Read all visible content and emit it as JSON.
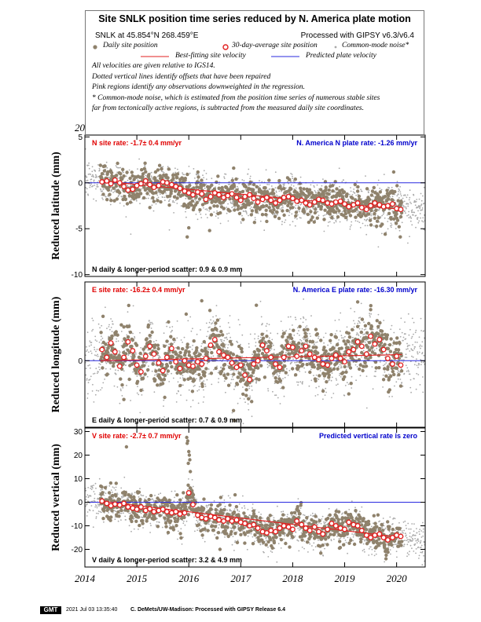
{
  "legend": {
    "title": "Site SNLK position time series reduced by N. America plate motion",
    "station_line": "SNLK at 45.854°N 268.459°E",
    "processed_line": "Processed with GIPSY v6.3/v6.4",
    "items": {
      "daily": "Daily site position",
      "avg30": "30-day-average site position",
      "cmn": "Common-mode noise*",
      "bestfit": "Best-fitting site velocity",
      "predicted": "Predicted plate velocity"
    },
    "notes": [
      "All velocities are given relative to IGS14.",
      "Dotted vertical lines identify offsets that have been repaired",
      "Pink regions identify any observations downweighted in the regression.",
      "* Common-mode noise, which is estimated from the position time series of numerous stable sites",
      "far from tectonically active regions, is subtracted from the measured daily site coordinates."
    ]
  },
  "footer": {
    "badge": "GMT",
    "timestamp": "2021 Jul 03 13:35:40",
    "credit": "C. DeMets/UW-Madison: Processed with GIPSY Release 6.4"
  },
  "colors": {
    "daily": "#8f826c",
    "cmn": "#a9a9a9",
    "avg_edge": "#e21f1f",
    "bestfit": "#e21f1f",
    "predicted": "#2a2adf",
    "rate_text_site": "#e00000",
    "rate_text_plate": "#0000cc"
  },
  "chart_data": [
    {
      "type": "scatter",
      "component": "north",
      "ylabel": "Reduced latitude (mm)",
      "xlim": [
        2014.0,
        2020.55
      ],
      "ylim": [
        -10.2,
        5.2
      ],
      "yticks": [
        5,
        0,
        -5,
        -10
      ],
      "xticks": [
        2014,
        2015,
        2016,
        2017,
        2018,
        2019,
        2020
      ],
      "site_rate_text": "N site rate:  -1.7± 0.4 mm/yr",
      "plate_rate_text": "N. America N plate rate:  -1.26 mm/yr",
      "scatter_text": "N daily & longer-period scatter:   0.9 &   0.9 mm",
      "data_span": [
        2014.3,
        2020.1
      ],
      "best_fit": {
        "x": [
          2014.3,
          2020.1
        ],
        "y": [
          0.2,
          -2.9
        ]
      },
      "predicted_rate_line_y": 0,
      "avg30": {
        "x": [
          2014.33,
          2014.42,
          2014.5,
          2014.58,
          2014.67,
          2014.75,
          2014.83,
          2014.92,
          2015.0,
          2015.08,
          2015.17,
          2015.25,
          2015.33,
          2015.42,
          2015.5,
          2015.58,
          2015.67,
          2015.75,
          2015.83,
          2015.92,
          2016.0,
          2016.08,
          2016.17,
          2016.25,
          2016.33,
          2016.42,
          2016.5,
          2016.58,
          2016.67,
          2016.75,
          2016.83,
          2016.92,
          2017.0,
          2017.08,
          2017.17,
          2017.25,
          2017.33,
          2017.42,
          2017.5,
          2017.58,
          2017.67,
          2017.75,
          2017.83,
          2017.92,
          2018.0,
          2018.08,
          2018.17,
          2018.25,
          2018.33,
          2018.42,
          2018.5,
          2018.58,
          2018.67,
          2018.75,
          2018.83,
          2018.92,
          2019.0,
          2019.08,
          2019.17,
          2019.25,
          2019.33,
          2019.42,
          2019.5,
          2019.58,
          2019.67,
          2019.75,
          2019.83,
          2019.92,
          2020.0,
          2020.08
        ],
        "y": [
          0.1,
          0.2,
          -0.1,
          0.3,
          0.0,
          -0.4,
          -0.8,
          -0.7,
          -0.3,
          -0.1,
          0.2,
          -0.2,
          -0.5,
          -0.3,
          0.1,
          0.0,
          -0.2,
          -0.4,
          -0.6,
          -0.9,
          -1.1,
          -1.3,
          -1.0,
          -1.2,
          -1.8,
          -1.5,
          -1.1,
          -1.3,
          -1.6,
          -1.4,
          -1.2,
          -1.6,
          -1.9,
          -1.5,
          -1.3,
          -1.7,
          -2.1,
          -1.8,
          -1.6,
          -1.9,
          -2.2,
          -1.9,
          -1.6,
          -1.5,
          -1.7,
          -2.0,
          -1.9,
          -2.2,
          -2.4,
          -2.1,
          -1.8,
          -1.9,
          -2.2,
          -2.3,
          -2.1,
          -2.0,
          -2.3,
          -2.6,
          -2.4,
          -2.2,
          -2.7,
          -2.9,
          -2.5,
          -2.2,
          -2.4,
          -2.6,
          -2.5,
          -2.3,
          -2.8,
          -2.9
        ]
      },
      "noise": {
        "daily_sd": 0.95,
        "cmn_sd": 1.2,
        "outliers": [
          [
            2015.97,
            -5.9
          ],
          [
            2016.0,
            -4.9
          ],
          [
            2019.78,
            -5.6
          ],
          [
            2020.07,
            -5.9
          ],
          [
            2017.5,
            -4.2
          ],
          [
            2016.4,
            -5.2
          ]
        ]
      }
    },
    {
      "type": "scatter",
      "component": "east",
      "ylabel": "Reduced longitude (mm)",
      "xlim": [
        2014.0,
        2020.55
      ],
      "ylim": [
        -6.0,
        7.1
      ],
      "yticks": [
        0
      ],
      "xticks": [
        2014,
        2015,
        2016,
        2017,
        2018,
        2019,
        2020
      ],
      "site_rate_text": "E site rate:  -16.2± 0.4 mm/yr",
      "plate_rate_text": "N. America E plate rate:  -16.30 mm/yr",
      "scatter_text": "E daily & longer-period scatter:   0.7 &   0.9 mm",
      "data_span": [
        2014.3,
        2020.1
      ],
      "best_fit": {
        "x": [
          2014.3,
          2020.1
        ],
        "y": [
          0.0,
          0.55
        ]
      },
      "predicted_rate_line_y": 0,
      "avg30": {
        "x": [
          2014.33,
          2014.42,
          2014.5,
          2014.58,
          2014.67,
          2014.75,
          2014.83,
          2014.92,
          2015.0,
          2015.08,
          2015.17,
          2015.25,
          2015.33,
          2015.42,
          2015.5,
          2015.58,
          2015.67,
          2015.75,
          2015.83,
          2015.92,
          2016.0,
          2016.08,
          2016.17,
          2016.25,
          2016.33,
          2016.42,
          2016.5,
          2016.58,
          2016.67,
          2016.75,
          2016.83,
          2016.92,
          2017.0,
          2017.08,
          2017.17,
          2017.25,
          2017.33,
          2017.42,
          2017.5,
          2017.58,
          2017.67,
          2017.75,
          2017.83,
          2017.92,
          2018.0,
          2018.08,
          2018.17,
          2018.25,
          2018.33,
          2018.42,
          2018.5,
          2018.58,
          2018.67,
          2018.75,
          2018.83,
          2018.92,
          2019.0,
          2019.08,
          2019.17,
          2019.25,
          2019.33,
          2019.42,
          2019.5,
          2019.58,
          2019.67,
          2019.75,
          2019.83,
          2019.92,
          2020.0,
          2020.08
        ],
        "y": [
          1.0,
          0.3,
          1.6,
          0.8,
          -0.5,
          0.3,
          1.7,
          0.9,
          -0.4,
          -1.0,
          0.4,
          1.3,
          0.6,
          -0.2,
          -0.9,
          0.3,
          1.1,
          -0.1,
          -0.7,
          0.0,
          -0.4,
          -0.5,
          -0.1,
          -0.3,
          0.2,
          1.4,
          1.9,
          0.8,
          0.5,
          0.3,
          -0.2,
          -0.6,
          -0.4,
          -1.3,
          -1.7,
          -0.3,
          0.0,
          1.4,
          0.9,
          0.3,
          -0.3,
          -0.6,
          0.3,
          1.3,
          1.2,
          0.4,
          0.9,
          1.3,
          0.6,
          0.3,
          0.1,
          -0.3,
          -0.4,
          0.2,
          0.5,
          0.2,
          -0.1,
          0.8,
          1.0,
          1.7,
          1.3,
          0.6,
          2.2,
          1.5,
          1.9,
          1.0,
          0.2,
          -0.3,
          0.4,
          -0.4
        ]
      },
      "noise": {
        "daily_sd": 1.05,
        "cmn_sd": 1.6,
        "outliers": [
          [
            2016.88,
            -5.4
          ],
          [
            2016.86,
            -4.5
          ],
          [
            2014.35,
            4.0
          ],
          [
            2015.95,
            4.2
          ],
          [
            2019.25,
            5.3
          ],
          [
            2019.5,
            4.6
          ],
          [
            2016.25,
            5.4
          ],
          [
            2017.3,
            5.0
          ],
          [
            2019.08,
            -3.0
          ],
          [
            2014.75,
            -3.5
          ]
        ]
      }
    },
    {
      "type": "scatter",
      "component": "vertical",
      "ylabel": "Reduced vertical (mm)",
      "xlim": [
        2014.0,
        2020.55
      ],
      "ylim": [
        -27.5,
        31.5
      ],
      "yticks": [
        30,
        20,
        10,
        0,
        -10,
        -20
      ],
      "xticks": [
        2014,
        2015,
        2016,
        2017,
        2018,
        2019,
        2020
      ],
      "site_rate_text": "V site rate:  -2.7± 0.7 mm/yr",
      "plate_rate_text": "Predicted vertical rate is zero",
      "scatter_text": "V daily & longer-period scatter:   3.2 &   4.9 mm",
      "data_span": [
        2014.3,
        2020.1
      ],
      "best_fit": {
        "x": [
          2014.3,
          2020.1
        ],
        "y": [
          0.5,
          -15.0
        ]
      },
      "predicted_rate_line_y": 0,
      "avg30": {
        "x": [
          2014.33,
          2014.42,
          2014.5,
          2014.58,
          2014.67,
          2014.75,
          2014.83,
          2014.92,
          2015.0,
          2015.08,
          2015.17,
          2015.25,
          2015.33,
          2015.42,
          2015.5,
          2015.58,
          2015.67,
          2015.75,
          2015.83,
          2015.92,
          2016.0,
          2016.08,
          2016.17,
          2016.25,
          2016.33,
          2016.42,
          2016.5,
          2016.58,
          2016.67,
          2016.75,
          2016.83,
          2016.92,
          2017.0,
          2017.08,
          2017.17,
          2017.25,
          2017.33,
          2017.42,
          2017.5,
          2017.58,
          2017.67,
          2017.75,
          2017.83,
          2017.92,
          2018.0,
          2018.08,
          2018.17,
          2018.25,
          2018.33,
          2018.42,
          2018.5,
          2018.58,
          2018.67,
          2018.75,
          2018.83,
          2018.92,
          2019.0,
          2019.08,
          2019.17,
          2019.25,
          2019.33,
          2019.42,
          2019.5,
          2019.58,
          2019.67,
          2019.75,
          2019.83,
          2019.92,
          2020.0,
          2020.08
        ],
        "y": [
          0.5,
          -0.5,
          -1.5,
          -0.8,
          -1.2,
          -0.5,
          -2.0,
          -2.5,
          -3.0,
          -2.0,
          -3.5,
          -2.8,
          -4.0,
          -3.5,
          -3.0,
          -4.0,
          -4.5,
          -4.0,
          -5.0,
          -4.5,
          4.0,
          -1.0,
          -5.5,
          -6.5,
          -7.0,
          -6.0,
          -6.5,
          -7.5,
          -8.0,
          -7.0,
          -8.0,
          -7.5,
          -8.5,
          -9.0,
          -10.0,
          -9.5,
          -11.0,
          -12.5,
          -13.0,
          -12.0,
          -12.5,
          -11.0,
          -10.0,
          -10.5,
          -11.5,
          -8.0,
          -9.5,
          -11.0,
          -12.0,
          -10.5,
          -12.5,
          -13.5,
          -11.5,
          -9.0,
          -10.0,
          -11.0,
          -11.5,
          -8.5,
          -9.5,
          -10.0,
          -12.0,
          -14.0,
          -15.0,
          -14.0,
          -13.5,
          -15.0,
          -16.0,
          -15.0,
          -14.0,
          -14.5
        ]
      },
      "noise": {
        "daily_sd": 3.3,
        "cmn_sd": 3.8,
        "outliers": [
          [
            2014.8,
            23.5
          ],
          [
            2015.96,
            27.5
          ],
          [
            2015.98,
            26.0
          ],
          [
            2015.97,
            25.0
          ],
          [
            2016.0,
            21.5
          ],
          [
            2016.01,
            20.0
          ],
          [
            2016.02,
            18.0
          ],
          [
            2015.99,
            16.5
          ],
          [
            2016.03,
            13.0
          ],
          [
            2016.6,
            -20.0
          ],
          [
            2018.9,
            -19.5
          ]
        ]
      }
    }
  ]
}
